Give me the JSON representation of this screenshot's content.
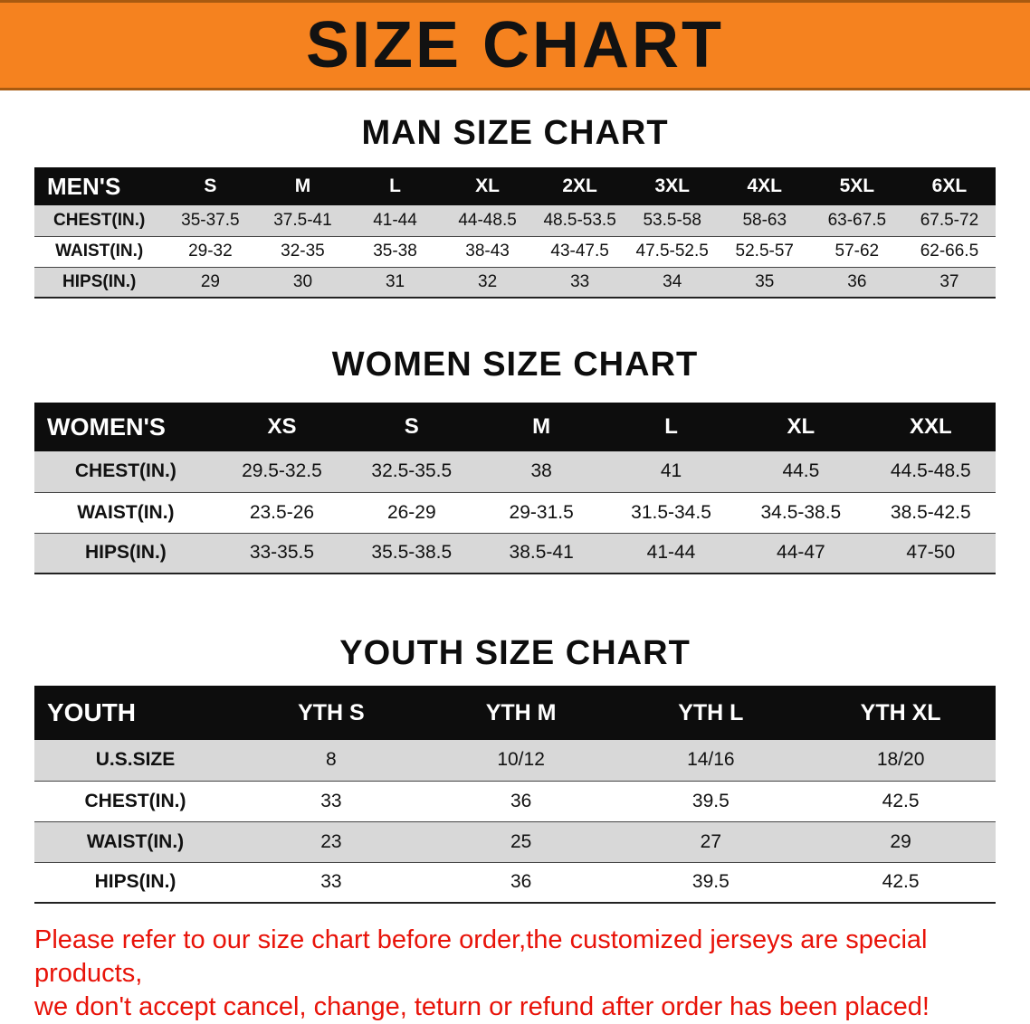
{
  "banner": {
    "title": "SIZE CHART",
    "bg_color": "#f5821f",
    "text_color": "#121212"
  },
  "sections": [
    {
      "heading": "MAN SIZE CHART",
      "table": {
        "header": [
          "MEN'S",
          "S",
          "M",
          "L",
          "XL",
          "2XL",
          "3XL",
          "4XL",
          "5XL",
          "6XL"
        ],
        "rows": [
          [
            "CHEST(IN.)",
            "35-37.5",
            "37.5-41",
            "41-44",
            "44-48.5",
            "48.5-53.5",
            "53.5-58",
            "58-63",
            "63-67.5",
            "67.5-72"
          ],
          [
            "WAIST(IN.)",
            "29-32",
            "32-35",
            "35-38",
            "38-43",
            "43-47.5",
            "47.5-52.5",
            "52.5-57",
            "57-62",
            "62-66.5"
          ],
          [
            "HIPS(IN.)",
            "29",
            "30",
            "31",
            "32",
            "33",
            "34",
            "35",
            "36",
            "37"
          ]
        ]
      }
    },
    {
      "heading": "WOMEN SIZE CHART",
      "table": {
        "header": [
          "WOMEN'S",
          "XS",
          "S",
          "M",
          "L",
          "XL",
          "XXL"
        ],
        "rows": [
          [
            "CHEST(IN.)",
            "29.5-32.5",
            "32.5-35.5",
            "38",
            "41",
            "44.5",
            "44.5-48.5"
          ],
          [
            "WAIST(IN.)",
            "23.5-26",
            "26-29",
            "29-31.5",
            "31.5-34.5",
            "34.5-38.5",
            "38.5-42.5"
          ],
          [
            "HIPS(IN.)",
            "33-35.5",
            "35.5-38.5",
            "38.5-41",
            "41-44",
            "44-47",
            "47-50"
          ]
        ]
      }
    },
    {
      "heading": "YOUTH SIZE CHART",
      "table": {
        "header": [
          "YOUTH",
          "YTH S",
          "YTH M",
          "YTH L",
          "YTH XL"
        ],
        "rows": [
          [
            "U.S.SIZE",
            "8",
            "10/12",
            "14/16",
            "18/20"
          ],
          [
            "CHEST(IN.)",
            "33",
            "36",
            "39.5",
            "42.5"
          ],
          [
            "WAIST(IN.)",
            "23",
            "25",
            "27",
            "29"
          ],
          [
            "HIPS(IN.)",
            "33",
            "36",
            "39.5",
            "42.5"
          ]
        ]
      }
    }
  ],
  "footer": {
    "text_color": "#e81309",
    "lines": [
      "Please refer to our size chart before order,the customized jerseys are special products,",
      "we don't accept cancel, change, teturn or refund after order has been placed!"
    ]
  }
}
